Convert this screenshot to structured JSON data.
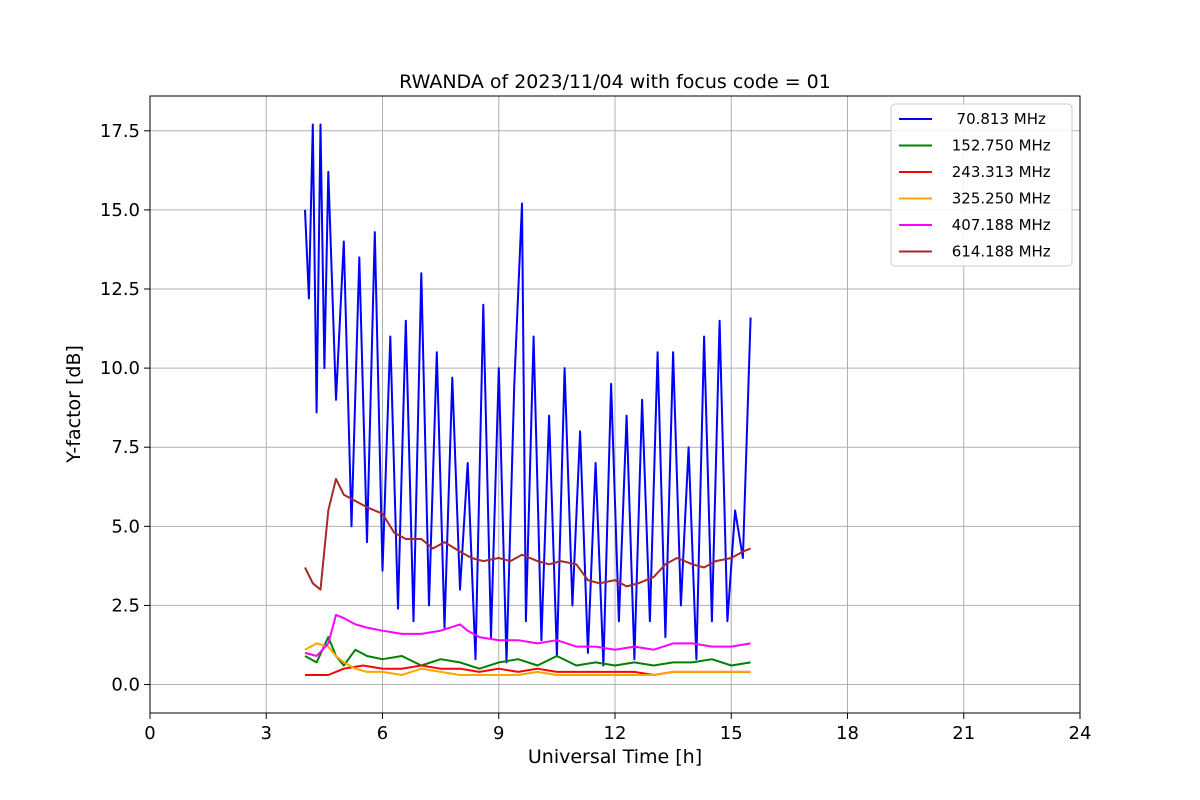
{
  "chart_data": {
    "type": "line",
    "title": "RWANDA of 2023/11/04 with focus code = 01",
    "xlabel": "Universal Time [h]",
    "ylabel": "Y-factor [dB]",
    "xlim": [
      0,
      24
    ],
    "ylim": [
      -0.9,
      18.6
    ],
    "xticks": [
      0,
      3,
      6,
      9,
      12,
      15,
      18,
      21,
      24
    ],
    "xtick_labels": [
      "0",
      "3",
      "6",
      "9",
      "12",
      "15",
      "18",
      "21",
      "24"
    ],
    "yticks": [
      0,
      2.5,
      5,
      7.5,
      10,
      12.5,
      15,
      17.5
    ],
    "ytick_labels": [
      "0.0",
      "2.5",
      "5.0",
      "7.5",
      "10.0",
      "12.5",
      "15.0",
      "17.5"
    ],
    "grid": true,
    "legend_position": "top-right",
    "series": [
      {
        "name": "  70.813 MHz",
        "color": "#0000ff",
        "points": [
          [
            4.0,
            15.0
          ],
          [
            4.1,
            12.2
          ],
          [
            4.2,
            17.7
          ],
          [
            4.3,
            8.6
          ],
          [
            4.4,
            17.7
          ],
          [
            4.5,
            10.0
          ],
          [
            4.6,
            16.2
          ],
          [
            4.8,
            9.0
          ],
          [
            5.0,
            14.0
          ],
          [
            5.2,
            5.0
          ],
          [
            5.4,
            13.5
          ],
          [
            5.6,
            4.5
          ],
          [
            5.8,
            14.3
          ],
          [
            6.0,
            3.6
          ],
          [
            6.2,
            11.0
          ],
          [
            6.4,
            2.4
          ],
          [
            6.6,
            11.5
          ],
          [
            6.8,
            2.0
          ],
          [
            7.0,
            13.0
          ],
          [
            7.2,
            2.5
          ],
          [
            7.4,
            10.5
          ],
          [
            7.6,
            1.8
          ],
          [
            7.8,
            9.7
          ],
          [
            8.0,
            3.0
          ],
          [
            8.2,
            7.0
          ],
          [
            8.4,
            0.8
          ],
          [
            8.6,
            12.0
          ],
          [
            8.8,
            1.5
          ],
          [
            9.0,
            10.0
          ],
          [
            9.2,
            0.7
          ],
          [
            9.4,
            9.5
          ],
          [
            9.6,
            15.2
          ],
          [
            9.7,
            2.0
          ],
          [
            9.9,
            11.0
          ],
          [
            10.1,
            1.4
          ],
          [
            10.3,
            8.5
          ],
          [
            10.5,
            0.9
          ],
          [
            10.7,
            10.0
          ],
          [
            10.9,
            2.5
          ],
          [
            11.1,
            8.0
          ],
          [
            11.3,
            1.0
          ],
          [
            11.5,
            7.0
          ],
          [
            11.7,
            0.6
          ],
          [
            11.9,
            9.5
          ],
          [
            12.1,
            2.0
          ],
          [
            12.3,
            8.5
          ],
          [
            12.5,
            0.8
          ],
          [
            12.7,
            9.0
          ],
          [
            12.9,
            2.0
          ],
          [
            13.1,
            10.5
          ],
          [
            13.3,
            1.5
          ],
          [
            13.5,
            10.5
          ],
          [
            13.7,
            2.5
          ],
          [
            13.9,
            7.5
          ],
          [
            14.1,
            0.8
          ],
          [
            14.3,
            11.0
          ],
          [
            14.5,
            2.0
          ],
          [
            14.7,
            11.5
          ],
          [
            14.9,
            2.0
          ],
          [
            15.1,
            5.5
          ],
          [
            15.3,
            4.0
          ],
          [
            15.5,
            11.6
          ]
        ]
      },
      {
        "name": " 152.750 MHz",
        "color": "#008000",
        "points": [
          [
            4.0,
            0.9
          ],
          [
            4.3,
            0.7
          ],
          [
            4.6,
            1.5
          ],
          [
            4.8,
            0.9
          ],
          [
            5.0,
            0.6
          ],
          [
            5.3,
            1.1
          ],
          [
            5.6,
            0.9
          ],
          [
            6.0,
            0.8
          ],
          [
            6.5,
            0.9
          ],
          [
            7.0,
            0.6
          ],
          [
            7.5,
            0.8
          ],
          [
            8.0,
            0.7
          ],
          [
            8.5,
            0.5
          ],
          [
            9.0,
            0.7
          ],
          [
            9.5,
            0.8
          ],
          [
            10.0,
            0.6
          ],
          [
            10.5,
            0.9
          ],
          [
            11.0,
            0.6
          ],
          [
            11.5,
            0.7
          ],
          [
            12.0,
            0.6
          ],
          [
            12.5,
            0.7
          ],
          [
            13.0,
            0.6
          ],
          [
            13.5,
            0.7
          ],
          [
            14.0,
            0.7
          ],
          [
            14.5,
            0.8
          ],
          [
            15.0,
            0.6
          ],
          [
            15.5,
            0.7
          ]
        ]
      },
      {
        "name": " 243.313 MHz",
        "color": "#ff0000",
        "points": [
          [
            4.0,
            0.3
          ],
          [
            4.3,
            0.3
          ],
          [
            4.6,
            0.3
          ],
          [
            5.0,
            0.5
          ],
          [
            5.5,
            0.6
          ],
          [
            6.0,
            0.5
          ],
          [
            6.5,
            0.5
          ],
          [
            7.0,
            0.6
          ],
          [
            7.5,
            0.5
          ],
          [
            8.0,
            0.5
          ],
          [
            8.5,
            0.4
          ],
          [
            9.0,
            0.5
          ],
          [
            9.5,
            0.4
          ],
          [
            10.0,
            0.5
          ],
          [
            10.5,
            0.4
          ],
          [
            11.0,
            0.4
          ],
          [
            11.5,
            0.4
          ],
          [
            12.0,
            0.4
          ],
          [
            12.5,
            0.4
          ],
          [
            13.0,
            0.3
          ],
          [
            13.5,
            0.4
          ],
          [
            14.0,
            0.4
          ],
          [
            14.5,
            0.4
          ],
          [
            15.0,
            0.4
          ],
          [
            15.5,
            0.4
          ]
        ]
      },
      {
        "name": " 325.250 MHz",
        "color": "#ffa500",
        "points": [
          [
            4.0,
            1.1
          ],
          [
            4.3,
            1.3
          ],
          [
            4.6,
            1.2
          ],
          [
            4.8,
            0.9
          ],
          [
            5.0,
            0.7
          ],
          [
            5.3,
            0.5
          ],
          [
            5.6,
            0.4
          ],
          [
            6.0,
            0.4
          ],
          [
            6.5,
            0.3
          ],
          [
            7.0,
            0.5
          ],
          [
            7.5,
            0.4
          ],
          [
            8.0,
            0.3
          ],
          [
            8.5,
            0.3
          ],
          [
            9.0,
            0.3
          ],
          [
            9.5,
            0.3
          ],
          [
            10.0,
            0.4
          ],
          [
            10.5,
            0.3
          ],
          [
            11.0,
            0.3
          ],
          [
            11.5,
            0.3
          ],
          [
            12.0,
            0.3
          ],
          [
            12.5,
            0.3
          ],
          [
            13.0,
            0.3
          ],
          [
            13.5,
            0.4
          ],
          [
            14.0,
            0.4
          ],
          [
            14.5,
            0.4
          ],
          [
            15.0,
            0.4
          ],
          [
            15.5,
            0.4
          ]
        ]
      },
      {
        "name": " 407.188 MHz",
        "color": "#ff00ff",
        "points": [
          [
            4.0,
            1.0
          ],
          [
            4.3,
            0.9
          ],
          [
            4.6,
            1.3
          ],
          [
            4.8,
            2.2
          ],
          [
            5.0,
            2.1
          ],
          [
            5.3,
            1.9
          ],
          [
            5.6,
            1.8
          ],
          [
            6.0,
            1.7
          ],
          [
            6.5,
            1.6
          ],
          [
            7.0,
            1.6
          ],
          [
            7.5,
            1.7
          ],
          [
            8.0,
            1.9
          ],
          [
            8.2,
            1.7
          ],
          [
            8.5,
            1.5
          ],
          [
            9.0,
            1.4
          ],
          [
            9.5,
            1.4
          ],
          [
            10.0,
            1.3
          ],
          [
            10.5,
            1.4
          ],
          [
            11.0,
            1.2
          ],
          [
            11.5,
            1.2
          ],
          [
            12.0,
            1.1
          ],
          [
            12.5,
            1.2
          ],
          [
            13.0,
            1.1
          ],
          [
            13.5,
            1.3
          ],
          [
            14.0,
            1.3
          ],
          [
            14.5,
            1.2
          ],
          [
            15.0,
            1.2
          ],
          [
            15.5,
            1.3
          ]
        ]
      },
      {
        "name": " 614.188 MHz",
        "color": "#a52a2a",
        "points": [
          [
            4.0,
            3.7
          ],
          [
            4.2,
            3.2
          ],
          [
            4.4,
            3.0
          ],
          [
            4.6,
            5.5
          ],
          [
            4.8,
            6.5
          ],
          [
            5.0,
            6.0
          ],
          [
            5.3,
            5.8
          ],
          [
            5.6,
            5.6
          ],
          [
            6.0,
            5.4
          ],
          [
            6.3,
            4.8
          ],
          [
            6.6,
            4.6
          ],
          [
            7.0,
            4.6
          ],
          [
            7.3,
            4.3
          ],
          [
            7.6,
            4.5
          ],
          [
            8.0,
            4.2
          ],
          [
            8.3,
            4.0
          ],
          [
            8.6,
            3.9
          ],
          [
            9.0,
            4.0
          ],
          [
            9.3,
            3.9
          ],
          [
            9.6,
            4.1
          ],
          [
            10.0,
            3.9
          ],
          [
            10.3,
            3.8
          ],
          [
            10.6,
            3.9
          ],
          [
            11.0,
            3.8
          ],
          [
            11.3,
            3.3
          ],
          [
            11.6,
            3.2
          ],
          [
            12.0,
            3.3
          ],
          [
            12.3,
            3.1
          ],
          [
            12.6,
            3.2
          ],
          [
            13.0,
            3.4
          ],
          [
            13.3,
            3.8
          ],
          [
            13.6,
            4.0
          ],
          [
            14.0,
            3.8
          ],
          [
            14.3,
            3.7
          ],
          [
            14.6,
            3.9
          ],
          [
            15.0,
            4.0
          ],
          [
            15.3,
            4.2
          ],
          [
            15.5,
            4.3
          ]
        ]
      }
    ]
  }
}
